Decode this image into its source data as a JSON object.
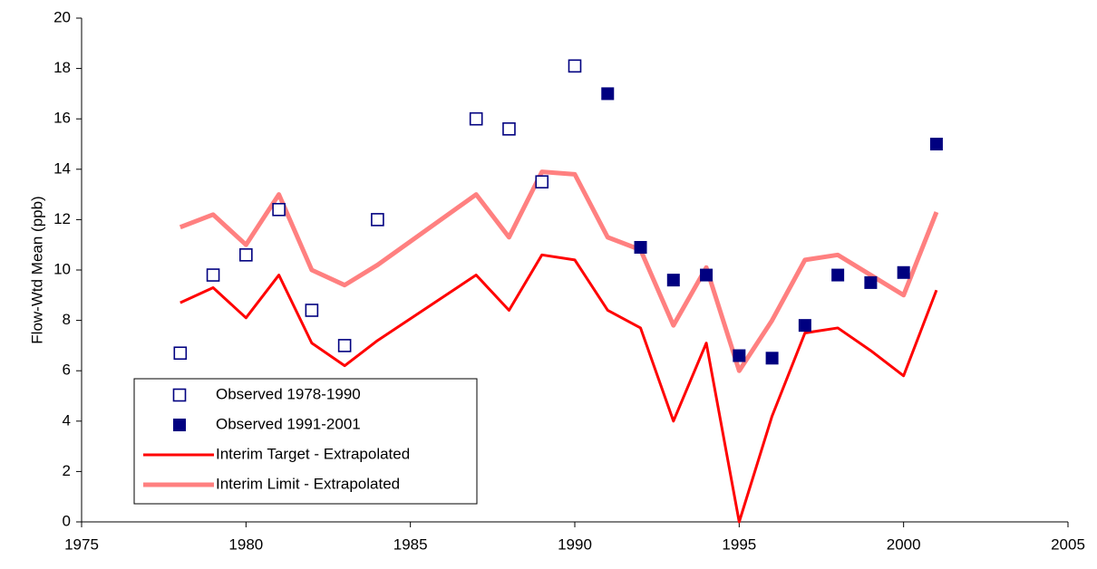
{
  "chart_data": {
    "type": "line",
    "y_label": "Flow-Wtd Mean (ppb)",
    "xlim": [
      1975,
      2005
    ],
    "xticks": [
      1975,
      1980,
      1985,
      1990,
      1995,
      2000,
      2005
    ],
    "ylim": [
      0,
      20
    ],
    "yticks": [
      0,
      2,
      4,
      6,
      8,
      10,
      12,
      14,
      16,
      18,
      20
    ],
    "grid": false,
    "legend": "lower left",
    "series": [
      {
        "name": "Observed 1978-1990",
        "color": "#000080",
        "style": "open-square",
        "x": [
          1978,
          1979,
          1980,
          1981,
          1982,
          1983,
          1984,
          1987,
          1988,
          1989,
          1990
        ],
        "values": [
          6.7,
          9.8,
          10.6,
          12.4,
          8.4,
          7.0,
          12.0,
          16.0,
          15.6,
          13.5,
          18.1
        ]
      },
      {
        "name": "Observed 1991-2001",
        "color": "#000080",
        "style": "filled-square",
        "x": [
          1991,
          1992,
          1993,
          1994,
          1995,
          1996,
          1997,
          1998,
          1999,
          2000,
          2001
        ],
        "values": [
          17.0,
          10.9,
          9.6,
          9.8,
          6.6,
          6.5,
          7.8,
          9.8,
          9.5,
          9.9,
          15.0
        ]
      },
      {
        "name": "Interim Target - Extrapolated",
        "color": "#ff0000",
        "style": "line",
        "width": 3,
        "x": [
          1978,
          1979,
          1980,
          1981,
          1982,
          1983,
          1984,
          1987,
          1988,
          1989,
          1990,
          1991,
          1992,
          1993,
          1994,
          1995,
          1996,
          1997,
          1998,
          1999,
          2000,
          2001
        ],
        "values": [
          8.7,
          9.3,
          8.1,
          9.8,
          7.1,
          6.2,
          7.2,
          9.8,
          8.4,
          10.6,
          10.4,
          8.4,
          7.7,
          4.0,
          7.1,
          0.0,
          4.2,
          7.5,
          7.7,
          6.8,
          5.8,
          9.2
        ]
      },
      {
        "name": "Interim Limit - Extrapolated",
        "color": "#ff8080",
        "style": "line",
        "width": 5,
        "x": [
          1978,
          1979,
          1980,
          1981,
          1982,
          1983,
          1984,
          1987,
          1988,
          1989,
          1990,
          1991,
          1992,
          1993,
          1994,
          1995,
          1996,
          1997,
          1998,
          1999,
          2000,
          2001
        ],
        "values": [
          11.7,
          12.2,
          11.0,
          13.0,
          10.0,
          9.4,
          10.2,
          13.0,
          11.3,
          13.9,
          13.8,
          11.3,
          10.8,
          7.8,
          10.1,
          6.0,
          8.0,
          10.4,
          10.6,
          9.8,
          9.0,
          12.3
        ]
      }
    ]
  }
}
